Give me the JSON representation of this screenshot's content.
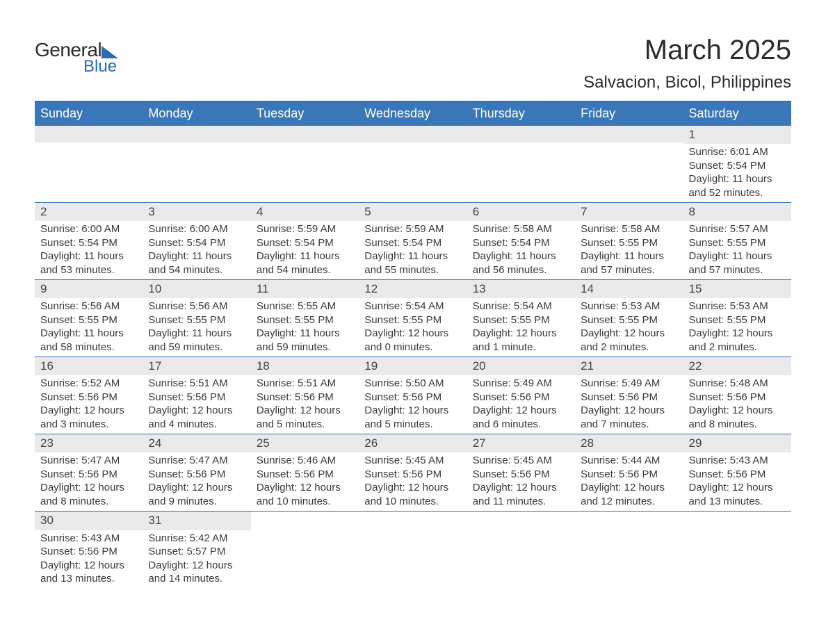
{
  "logo": {
    "text_general": "General",
    "text_blue": "Blue"
  },
  "title": "March 2025",
  "location": "Salvacion, Bicol, Philippines",
  "colors": {
    "header_bg": "#3a77b9",
    "header_text": "#ffffff",
    "row_divider": "#2a6bb6",
    "day_bar_bg": "#eaeaea",
    "body_text": "#3a3a3a",
    "logo_accent": "#2a6bb6"
  },
  "weekdays": [
    "Sunday",
    "Monday",
    "Tuesday",
    "Wednesday",
    "Thursday",
    "Friday",
    "Saturday"
  ],
  "weeks": [
    [
      {
        "day": "",
        "sunrise": "",
        "sunset": "",
        "daylight1": "",
        "daylight2": ""
      },
      {
        "day": "",
        "sunrise": "",
        "sunset": "",
        "daylight1": "",
        "daylight2": ""
      },
      {
        "day": "",
        "sunrise": "",
        "sunset": "",
        "daylight1": "",
        "daylight2": ""
      },
      {
        "day": "",
        "sunrise": "",
        "sunset": "",
        "daylight1": "",
        "daylight2": ""
      },
      {
        "day": "",
        "sunrise": "",
        "sunset": "",
        "daylight1": "",
        "daylight2": ""
      },
      {
        "day": "",
        "sunrise": "",
        "sunset": "",
        "daylight1": "",
        "daylight2": ""
      },
      {
        "day": "1",
        "sunrise": "Sunrise: 6:01 AM",
        "sunset": "Sunset: 5:54 PM",
        "daylight1": "Daylight: 11 hours",
        "daylight2": "and 52 minutes."
      }
    ],
    [
      {
        "day": "2",
        "sunrise": "Sunrise: 6:00 AM",
        "sunset": "Sunset: 5:54 PM",
        "daylight1": "Daylight: 11 hours",
        "daylight2": "and 53 minutes."
      },
      {
        "day": "3",
        "sunrise": "Sunrise: 6:00 AM",
        "sunset": "Sunset: 5:54 PM",
        "daylight1": "Daylight: 11 hours",
        "daylight2": "and 54 minutes."
      },
      {
        "day": "4",
        "sunrise": "Sunrise: 5:59 AM",
        "sunset": "Sunset: 5:54 PM",
        "daylight1": "Daylight: 11 hours",
        "daylight2": "and 54 minutes."
      },
      {
        "day": "5",
        "sunrise": "Sunrise: 5:59 AM",
        "sunset": "Sunset: 5:54 PM",
        "daylight1": "Daylight: 11 hours",
        "daylight2": "and 55 minutes."
      },
      {
        "day": "6",
        "sunrise": "Sunrise: 5:58 AM",
        "sunset": "Sunset: 5:54 PM",
        "daylight1": "Daylight: 11 hours",
        "daylight2": "and 56 minutes."
      },
      {
        "day": "7",
        "sunrise": "Sunrise: 5:58 AM",
        "sunset": "Sunset: 5:55 PM",
        "daylight1": "Daylight: 11 hours",
        "daylight2": "and 57 minutes."
      },
      {
        "day": "8",
        "sunrise": "Sunrise: 5:57 AM",
        "sunset": "Sunset: 5:55 PM",
        "daylight1": "Daylight: 11 hours",
        "daylight2": "and 57 minutes."
      }
    ],
    [
      {
        "day": "9",
        "sunrise": "Sunrise: 5:56 AM",
        "sunset": "Sunset: 5:55 PM",
        "daylight1": "Daylight: 11 hours",
        "daylight2": "and 58 minutes."
      },
      {
        "day": "10",
        "sunrise": "Sunrise: 5:56 AM",
        "sunset": "Sunset: 5:55 PM",
        "daylight1": "Daylight: 11 hours",
        "daylight2": "and 59 minutes."
      },
      {
        "day": "11",
        "sunrise": "Sunrise: 5:55 AM",
        "sunset": "Sunset: 5:55 PM",
        "daylight1": "Daylight: 11 hours",
        "daylight2": "and 59 minutes."
      },
      {
        "day": "12",
        "sunrise": "Sunrise: 5:54 AM",
        "sunset": "Sunset: 5:55 PM",
        "daylight1": "Daylight: 12 hours",
        "daylight2": "and 0 minutes."
      },
      {
        "day": "13",
        "sunrise": "Sunrise: 5:54 AM",
        "sunset": "Sunset: 5:55 PM",
        "daylight1": "Daylight: 12 hours",
        "daylight2": "and 1 minute."
      },
      {
        "day": "14",
        "sunrise": "Sunrise: 5:53 AM",
        "sunset": "Sunset: 5:55 PM",
        "daylight1": "Daylight: 12 hours",
        "daylight2": "and 2 minutes."
      },
      {
        "day": "15",
        "sunrise": "Sunrise: 5:53 AM",
        "sunset": "Sunset: 5:55 PM",
        "daylight1": "Daylight: 12 hours",
        "daylight2": "and 2 minutes."
      }
    ],
    [
      {
        "day": "16",
        "sunrise": "Sunrise: 5:52 AM",
        "sunset": "Sunset: 5:56 PM",
        "daylight1": "Daylight: 12 hours",
        "daylight2": "and 3 minutes."
      },
      {
        "day": "17",
        "sunrise": "Sunrise: 5:51 AM",
        "sunset": "Sunset: 5:56 PM",
        "daylight1": "Daylight: 12 hours",
        "daylight2": "and 4 minutes."
      },
      {
        "day": "18",
        "sunrise": "Sunrise: 5:51 AM",
        "sunset": "Sunset: 5:56 PM",
        "daylight1": "Daylight: 12 hours",
        "daylight2": "and 5 minutes."
      },
      {
        "day": "19",
        "sunrise": "Sunrise: 5:50 AM",
        "sunset": "Sunset: 5:56 PM",
        "daylight1": "Daylight: 12 hours",
        "daylight2": "and 5 minutes."
      },
      {
        "day": "20",
        "sunrise": "Sunrise: 5:49 AM",
        "sunset": "Sunset: 5:56 PM",
        "daylight1": "Daylight: 12 hours",
        "daylight2": "and 6 minutes."
      },
      {
        "day": "21",
        "sunrise": "Sunrise: 5:49 AM",
        "sunset": "Sunset: 5:56 PM",
        "daylight1": "Daylight: 12 hours",
        "daylight2": "and 7 minutes."
      },
      {
        "day": "22",
        "sunrise": "Sunrise: 5:48 AM",
        "sunset": "Sunset: 5:56 PM",
        "daylight1": "Daylight: 12 hours",
        "daylight2": "and 8 minutes."
      }
    ],
    [
      {
        "day": "23",
        "sunrise": "Sunrise: 5:47 AM",
        "sunset": "Sunset: 5:56 PM",
        "daylight1": "Daylight: 12 hours",
        "daylight2": "and 8 minutes."
      },
      {
        "day": "24",
        "sunrise": "Sunrise: 5:47 AM",
        "sunset": "Sunset: 5:56 PM",
        "daylight1": "Daylight: 12 hours",
        "daylight2": "and 9 minutes."
      },
      {
        "day": "25",
        "sunrise": "Sunrise: 5:46 AM",
        "sunset": "Sunset: 5:56 PM",
        "daylight1": "Daylight: 12 hours",
        "daylight2": "and 10 minutes."
      },
      {
        "day": "26",
        "sunrise": "Sunrise: 5:45 AM",
        "sunset": "Sunset: 5:56 PM",
        "daylight1": "Daylight: 12 hours",
        "daylight2": "and 10 minutes."
      },
      {
        "day": "27",
        "sunrise": "Sunrise: 5:45 AM",
        "sunset": "Sunset: 5:56 PM",
        "daylight1": "Daylight: 12 hours",
        "daylight2": "and 11 minutes."
      },
      {
        "day": "28",
        "sunrise": "Sunrise: 5:44 AM",
        "sunset": "Sunset: 5:56 PM",
        "daylight1": "Daylight: 12 hours",
        "daylight2": "and 12 minutes."
      },
      {
        "day": "29",
        "sunrise": "Sunrise: 5:43 AM",
        "sunset": "Sunset: 5:56 PM",
        "daylight1": "Daylight: 12 hours",
        "daylight2": "and 13 minutes."
      }
    ],
    [
      {
        "day": "30",
        "sunrise": "Sunrise: 5:43 AM",
        "sunset": "Sunset: 5:56 PM",
        "daylight1": "Daylight: 12 hours",
        "daylight2": "and 13 minutes."
      },
      {
        "day": "31",
        "sunrise": "Sunrise: 5:42 AM",
        "sunset": "Sunset: 5:57 PM",
        "daylight1": "Daylight: 12 hours",
        "daylight2": "and 14 minutes."
      },
      {
        "day": "",
        "sunrise": "",
        "sunset": "",
        "daylight1": "",
        "daylight2": ""
      },
      {
        "day": "",
        "sunrise": "",
        "sunset": "",
        "daylight1": "",
        "daylight2": ""
      },
      {
        "day": "",
        "sunrise": "",
        "sunset": "",
        "daylight1": "",
        "daylight2": ""
      },
      {
        "day": "",
        "sunrise": "",
        "sunset": "",
        "daylight1": "",
        "daylight2": ""
      },
      {
        "day": "",
        "sunrise": "",
        "sunset": "",
        "daylight1": "",
        "daylight2": ""
      }
    ]
  ]
}
